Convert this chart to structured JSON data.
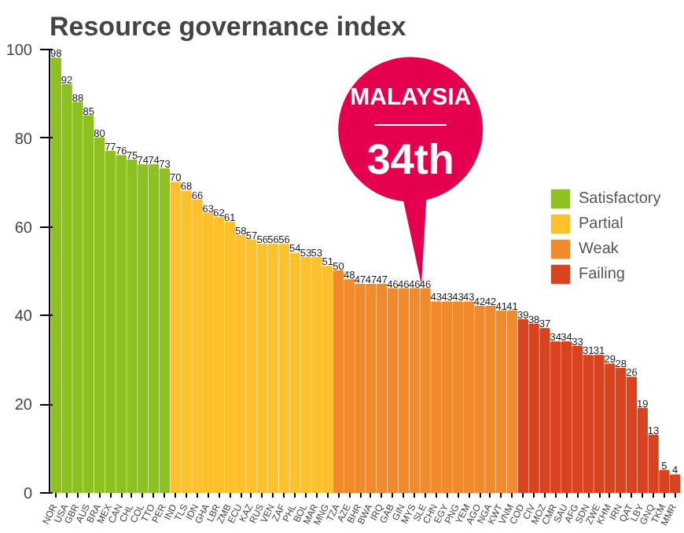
{
  "chart_data": {
    "type": "bar",
    "title": "Resource governance index",
    "categories": [
      "NOR",
      "USA",
      "GBR",
      "AUS",
      "BRA",
      "MEX",
      "CAN",
      "CHL",
      "COL",
      "TTO",
      "PER",
      "IND",
      "TLS",
      "IDN",
      "GHA",
      "LBR",
      "ZMB",
      "ECU",
      "KAZ",
      "RUS",
      "VEN",
      "ZAF",
      "PHL",
      "BOL",
      "MAR",
      "MNG",
      "TZA",
      "AZE",
      "BHR",
      "BWA",
      "IRQ",
      "GAB",
      "GIN",
      "MYS",
      "SLE",
      "CHN",
      "EGY",
      "PNG",
      "YEM",
      "AGO",
      "NGA",
      "KWT",
      "VNM",
      "COD",
      "CIV",
      "MOZ",
      "CMR",
      "SAU",
      "AFG",
      "SDN",
      "ZWE",
      "KHM",
      "IRN",
      "QAT",
      "LBY",
      "GNQ",
      "TKM",
      "MMR"
    ],
    "series": [
      {
        "name": "Satisfactory",
        "color": "#8dc021",
        "values": [
          98,
          92,
          88,
          85,
          80,
          77,
          76,
          75,
          74,
          74,
          73,
          null,
          null,
          null,
          null,
          null,
          null,
          null,
          null,
          null,
          null,
          null,
          null,
          null,
          null,
          null,
          null,
          null,
          null,
          null,
          null,
          null,
          null,
          null,
          null,
          null,
          null,
          null,
          null,
          null,
          null,
          null,
          null,
          null,
          null,
          null,
          null,
          null,
          null,
          null,
          null,
          null,
          null,
          null,
          null,
          null,
          null,
          null
        ]
      },
      {
        "name": "Partial",
        "color": "#fcc12c",
        "values": [
          null,
          null,
          null,
          null,
          null,
          null,
          null,
          null,
          null,
          null,
          null,
          70,
          68,
          66,
          63,
          62,
          61,
          58,
          57,
          56,
          56,
          56,
          54,
          53,
          53,
          51,
          null,
          null,
          null,
          null,
          null,
          null,
          null,
          null,
          null,
          null,
          null,
          null,
          null,
          null,
          null,
          null,
          null,
          null,
          null,
          null,
          null,
          null,
          null,
          null,
          null,
          null,
          null,
          null,
          null,
          null,
          null,
          null
        ]
      },
      {
        "name": "Weak",
        "color": "#f08a2c",
        "values": [
          null,
          null,
          null,
          null,
          null,
          null,
          null,
          null,
          null,
          null,
          null,
          null,
          null,
          null,
          null,
          null,
          null,
          null,
          null,
          null,
          null,
          null,
          null,
          null,
          null,
          null,
          50,
          48,
          47,
          47,
          47,
          46,
          46,
          46,
          46,
          43,
          43,
          43,
          43,
          42,
          42,
          41,
          41,
          null,
          null,
          null,
          null,
          null,
          null,
          null,
          null,
          null,
          null,
          null,
          null,
          null,
          null,
          null
        ]
      },
      {
        "name": "Failing",
        "color": "#d84320",
        "values": [
          null,
          null,
          null,
          null,
          null,
          null,
          null,
          null,
          null,
          null,
          null,
          null,
          null,
          null,
          null,
          null,
          null,
          null,
          null,
          null,
          null,
          null,
          null,
          null,
          null,
          null,
          null,
          null,
          null,
          null,
          null,
          null,
          null,
          null,
          null,
          null,
          null,
          null,
          null,
          null,
          null,
          null,
          null,
          39,
          38,
          37,
          34,
          34,
          33,
          31,
          31,
          29,
          28,
          26,
          19,
          13,
          5,
          4
        ]
      }
    ],
    "ylim": [
      0,
      100
    ],
    "yticks": [
      0,
      20,
      40,
      60,
      80,
      100
    ],
    "grid": false,
    "legend": "right",
    "data_labels": true,
    "annotations": [
      "MALAYSIA",
      "34th"
    ]
  }
}
